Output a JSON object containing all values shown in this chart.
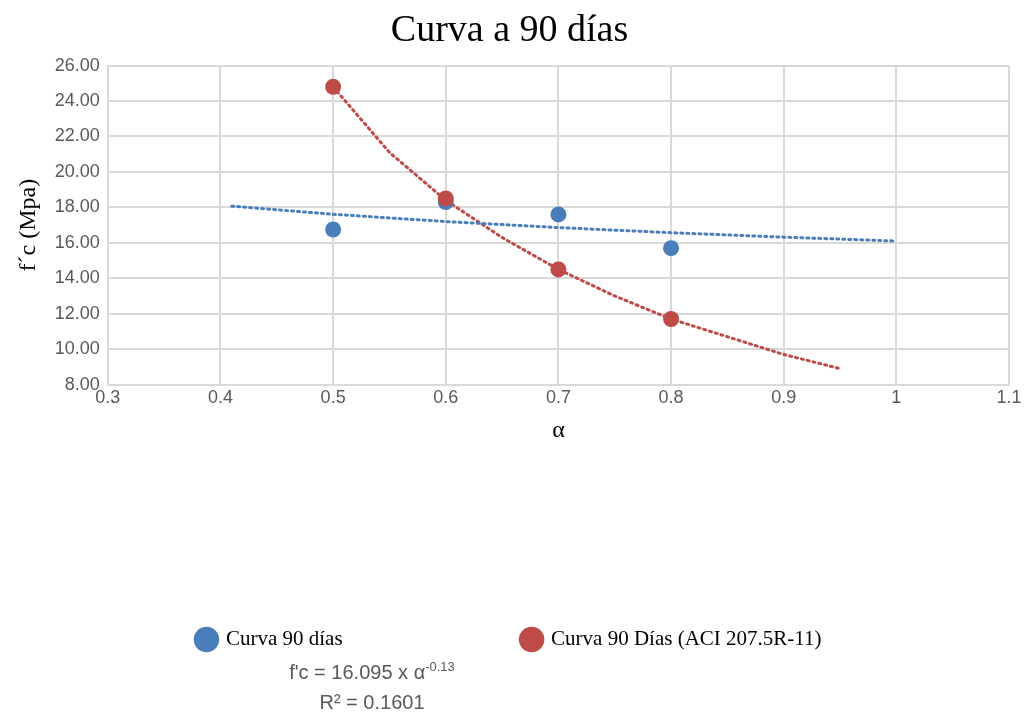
{
  "chart_data": {
    "type": "scatter",
    "title": "Curva a 90 días",
    "xlabel": "α",
    "ylabel": "f´c (Mpa)",
    "xlim": [
      0.3,
      1.1
    ],
    "xticks": [
      0.3,
      0.4,
      0.5,
      0.6,
      0.7,
      0.8,
      0.9,
      1,
      1.1
    ],
    "ylim": [
      8,
      26
    ],
    "yticks": [
      {
        "value": 8,
        "label": "8.00"
      },
      {
        "value": 10,
        "label": "10.00"
      },
      {
        "value": 12,
        "label": "12.00"
      },
      {
        "value": 14,
        "label": "14.00"
      },
      {
        "value": 16,
        "label": "16.00"
      },
      {
        "value": 18,
        "label": "18.00"
      },
      {
        "value": 20,
        "label": "20.00"
      },
      {
        "value": 22,
        "label": "22.00"
      },
      {
        "value": 24,
        "label": "24.00"
      },
      {
        "value": 26,
        "label": "26.00"
      }
    ],
    "grid": true,
    "legend": "bottom",
    "marker": "circle",
    "series": [
      {
        "name": "Curva 90 días",
        "color": "#4a7ebb",
        "x": [
          0.5,
          0.6,
          0.7,
          0.8
        ],
        "values": [
          16.75,
          18.3,
          17.6,
          15.7
        ]
      },
      {
        "name": "Curva 90 Días (ACI 207.5R-11)",
        "color": "#be4b48",
        "x": [
          0.5,
          0.6,
          0.7,
          0.8
        ],
        "values": [
          24.8,
          18.5,
          14.5,
          11.7
        ]
      },
      {
        "type": "line",
        "marker": "none",
        "line_style": "dotted",
        "color": "#4a7ebb",
        "x": [
          0.41,
          0.5,
          0.6,
          0.7,
          0.8,
          0.9,
          1.0
        ],
        "values": [
          18.07,
          17.61,
          17.2,
          16.86,
          16.57,
          16.32,
          16.1
        ]
      },
      {
        "type": "line",
        "marker": "none",
        "line_style": "dotted",
        "color": "#be4b48",
        "x": [
          0.5,
          0.55,
          0.6,
          0.65,
          0.7,
          0.75,
          0.8,
          0.85,
          0.9,
          0.95
        ],
        "values": [
          24.8,
          21.1,
          18.4,
          16.3,
          14.5,
          13.0,
          11.7,
          10.7,
          9.7,
          8.9
        ]
      }
    ],
    "annotations": [
      "f'c = 16.095 x α$^{-0.13}$",
      "R² = 0.1601"
    ]
  }
}
